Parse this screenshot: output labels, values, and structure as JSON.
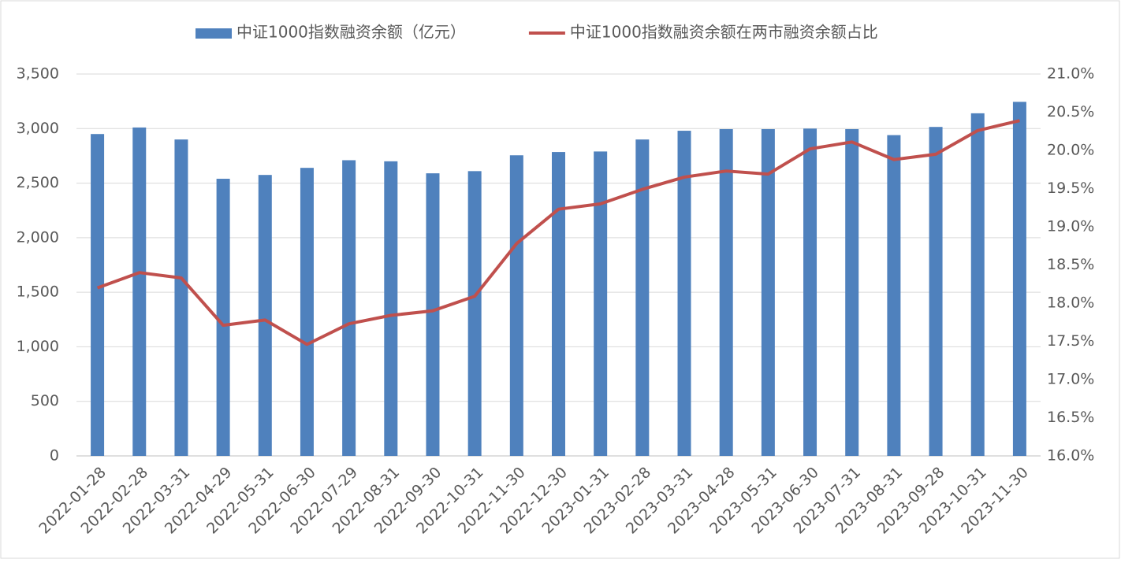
{
  "chart_data": {
    "type": "bar-line",
    "categories": [
      "2022-01-28",
      "2022-02-28",
      "2022-03-31",
      "2022-04-29",
      "2022-05-31",
      "2022-06-30",
      "2022-07-29",
      "2022-08-31",
      "2022-09-30",
      "2022-10-31",
      "2022-11-30",
      "2022-12-30",
      "2023-01-31",
      "2023-02-28",
      "2023-03-31",
      "2023-04-28",
      "2023-05-31",
      "2023-06-30",
      "2023-07-31",
      "2023-08-31",
      "2023-09-28",
      "2023-10-31",
      "2023-11-30"
    ],
    "series": [
      {
        "name": "中证1000指数融资余额（亿元）",
        "type": "bar",
        "color": "#4f81bd",
        "values": [
          2950,
          3010,
          2900,
          2540,
          2575,
          2640,
          2710,
          2700,
          2590,
          2610,
          2755,
          2785,
          2790,
          2900,
          2980,
          2995,
          2995,
          3000,
          2995,
          2940,
          3015,
          3140,
          3245
        ]
      },
      {
        "name": "中证1000指数融资余额在两市融资余额占比",
        "type": "line",
        "axis": "y2",
        "color": "#c0504d",
        "values": [
          18.2,
          18.4,
          18.33,
          17.71,
          17.78,
          17.46,
          17.73,
          17.84,
          17.9,
          18.09,
          18.78,
          19.23,
          19.3,
          19.49,
          19.65,
          19.73,
          19.69,
          20.02,
          20.11,
          19.88,
          19.95,
          20.26,
          20.39
        ]
      }
    ],
    "ylim": [
      0,
      3500
    ],
    "yticks": [
      0,
      500,
      {
        "value": 1000,
        "label": "1,000"
      },
      {
        "value": 1500,
        "label": "1,500"
      },
      {
        "value": 2000,
        "label": "2,000"
      },
      {
        "value": 2500,
        "label": "2,500"
      },
      {
        "value": 3000,
        "label": "3,000"
      },
      {
        "value": 3500,
        "label": "3,500"
      }
    ],
    "y2lim": [
      16,
      21
    ],
    "y2ticks": [
      {
        "value": 16,
        "label": "16.0%"
      },
      {
        "value": 16.5,
        "label": "16.5%"
      },
      {
        "value": 17,
        "label": "17.0%"
      },
      {
        "value": 17.5,
        "label": "17.5%"
      },
      {
        "value": 18,
        "label": "18.0%"
      },
      {
        "value": 18.5,
        "label": "18.5%"
      },
      {
        "value": 19,
        "label": "19.0%"
      },
      {
        "value": 19.5,
        "label": "19.5%"
      },
      {
        "value": 20,
        "label": "20.0%"
      },
      {
        "value": 20.5,
        "label": "20.5%"
      },
      {
        "value": 21,
        "label": "21.0%"
      }
    ],
    "grid": true,
    "legend": "top"
  }
}
